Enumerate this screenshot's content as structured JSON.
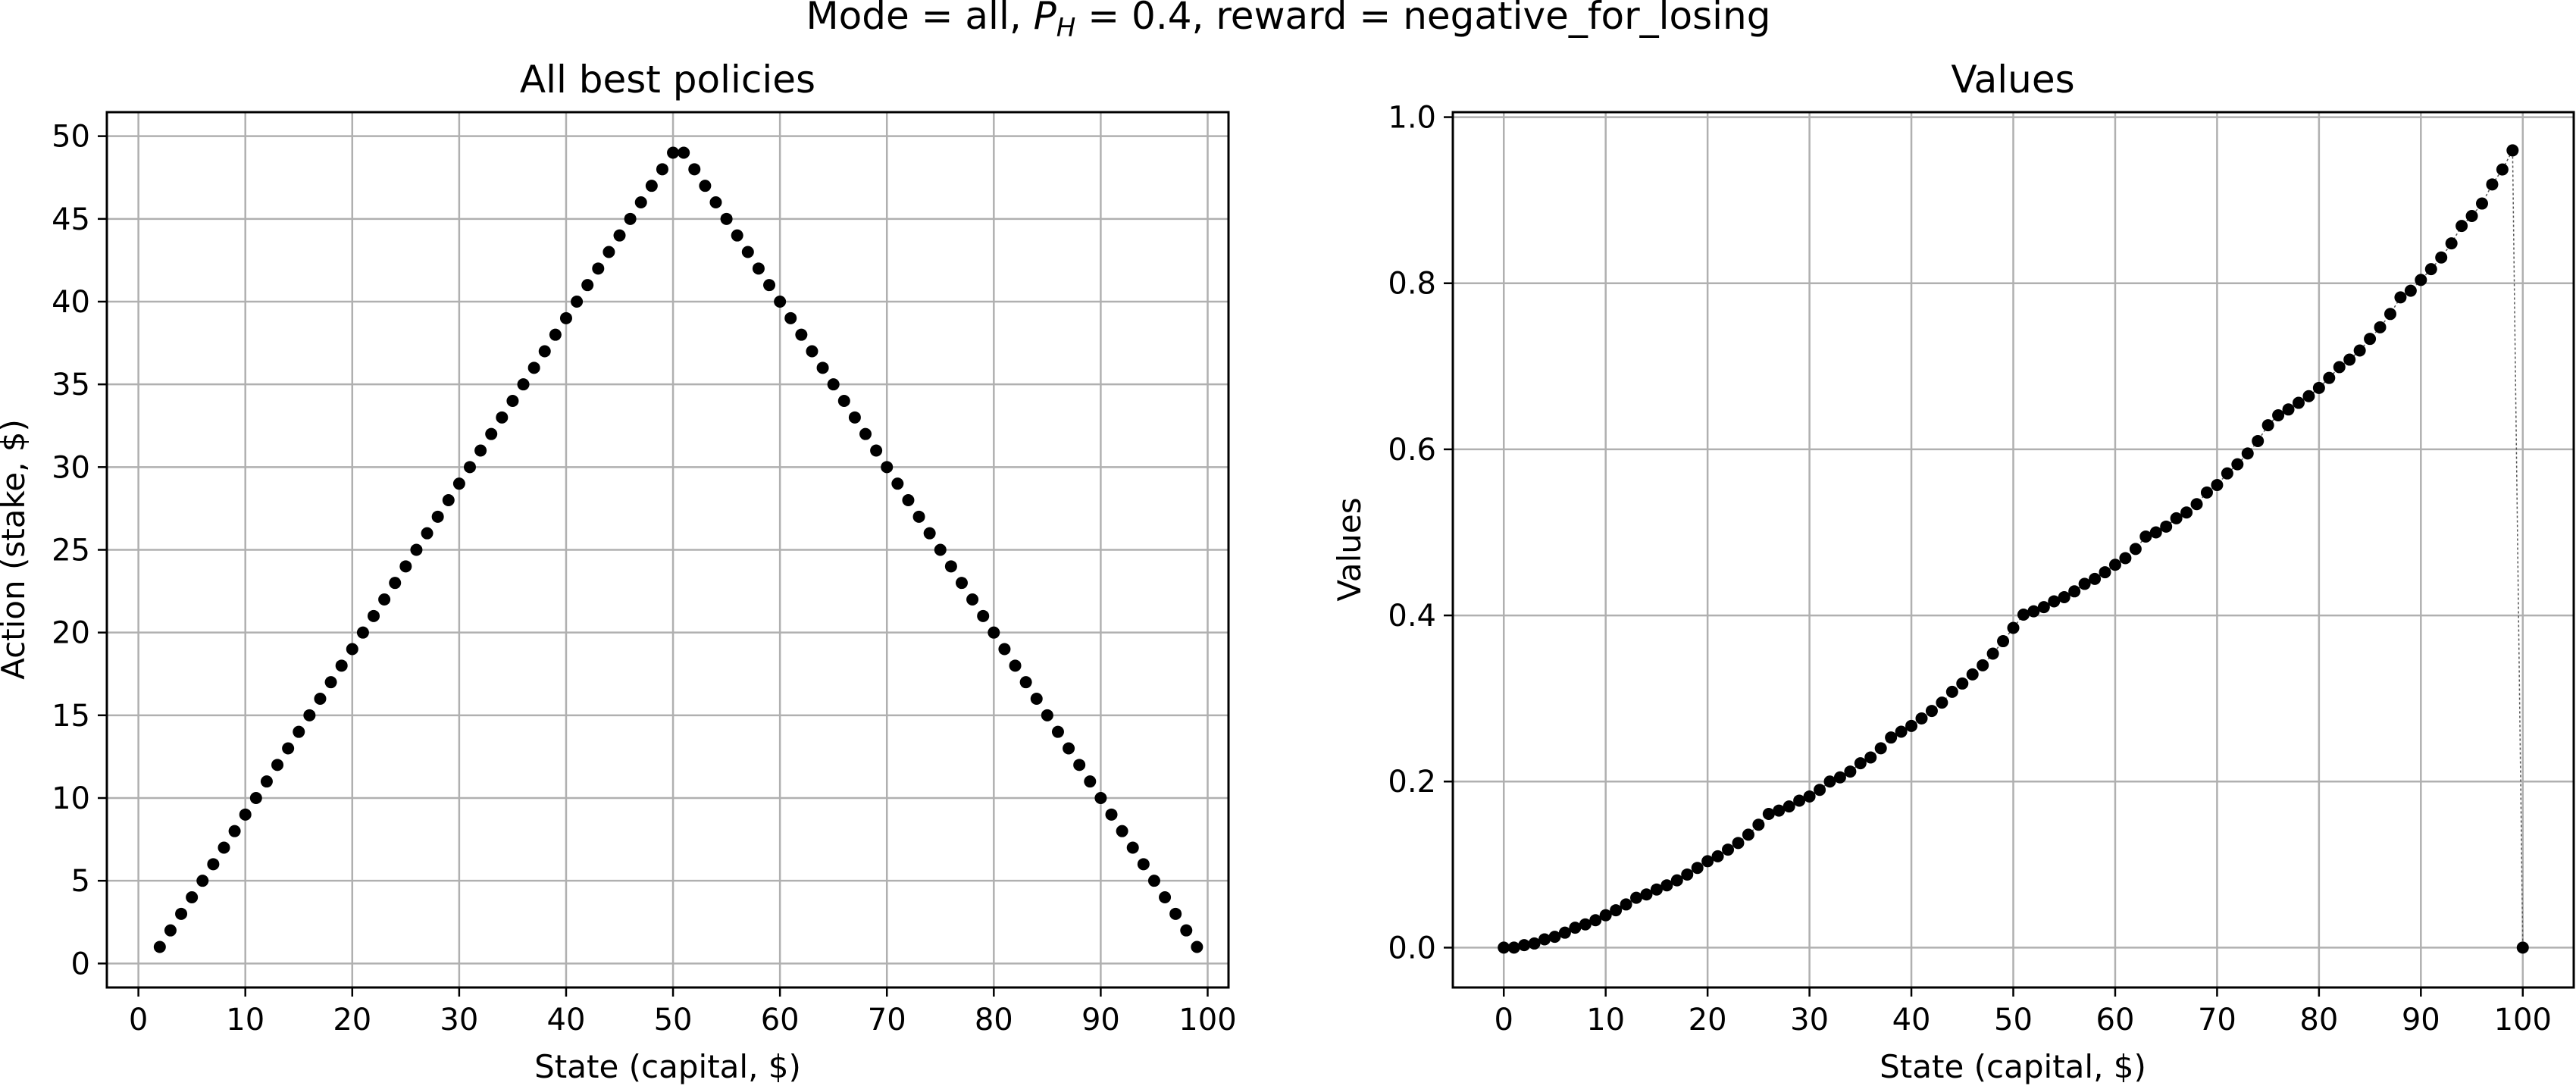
{
  "figure": {
    "suptitle_prefix": "Mode = all, ",
    "suptitle_symbol": "P",
    "suptitle_subscript": "H",
    "suptitle_suffix": " = 0.4, reward = negative_for_losing"
  },
  "colors": {
    "marker": "#000000",
    "grid": "#b0b0b0",
    "axis": "#000000",
    "background": "#ffffff"
  },
  "chart_data": [
    {
      "type": "scatter",
      "title": "All best policies",
      "xlabel": "State (capital, $)",
      "ylabel": "Action (stake, $)",
      "xlim": [
        -2.95,
        101.95
      ],
      "ylim": [
        -1.45,
        51.45
      ],
      "xticks": [
        0,
        10,
        20,
        30,
        40,
        50,
        60,
        70,
        80,
        90,
        100
      ],
      "yticks": [
        0,
        5,
        10,
        15,
        20,
        25,
        30,
        35,
        40,
        45,
        50
      ],
      "ytick_labels": [
        "0",
        "5",
        "10",
        "15",
        "20",
        "25",
        "30",
        "35",
        "40",
        "45",
        "50"
      ],
      "grid": true,
      "x": [
        2,
        3,
        4,
        5,
        6,
        7,
        8,
        9,
        10,
        11,
        12,
        13,
        14,
        15,
        16,
        17,
        18,
        19,
        20,
        21,
        22,
        23,
        24,
        25,
        26,
        27,
        28,
        29,
        30,
        31,
        32,
        33,
        34,
        35,
        36,
        37,
        38,
        39,
        40,
        41,
        42,
        43,
        44,
        45,
        46,
        47,
        48,
        49,
        50,
        51,
        52,
        53,
        54,
        55,
        56,
        57,
        58,
        59,
        60,
        61,
        62,
        63,
        64,
        65,
        66,
        67,
        68,
        69,
        70,
        71,
        72,
        73,
        74,
        75,
        76,
        77,
        78,
        79,
        80,
        81,
        82,
        83,
        84,
        85,
        86,
        87,
        88,
        89,
        90,
        91,
        92,
        93,
        94,
        95,
        96,
        97,
        98,
        99
      ],
      "y": [
        1,
        2,
        3,
        4,
        5,
        6,
        7,
        8,
        9,
        10,
        11,
        12,
        13,
        14,
        15,
        16,
        17,
        18,
        19,
        20,
        21,
        22,
        23,
        24,
        25,
        26,
        27,
        28,
        29,
        30,
        31,
        32,
        33,
        34,
        35,
        36,
        37,
        38,
        39,
        40,
        41,
        42,
        43,
        44,
        45,
        46,
        47,
        48,
        49,
        49,
        48,
        47,
        46,
        45,
        44,
        43,
        42,
        41,
        40,
        39,
        38,
        37,
        36,
        35,
        34,
        33,
        32,
        31,
        30,
        29,
        28,
        27,
        26,
        25,
        24,
        23,
        22,
        21,
        20,
        19,
        18,
        17,
        16,
        15,
        14,
        13,
        12,
        11,
        10,
        9,
        8,
        7,
        6,
        5,
        4,
        3,
        2,
        1
      ]
    },
    {
      "type": "line",
      "title": "Values",
      "xlabel": "State (capital, $)",
      "ylabel": "Values",
      "xlim": [
        -5,
        105
      ],
      "ylim": [
        -0.048,
        1.006
      ],
      "xticks": [
        0,
        10,
        20,
        30,
        40,
        50,
        60,
        70,
        80,
        90,
        100
      ],
      "yticks": [
        0.0,
        0.2,
        0.4,
        0.6,
        0.8,
        1.0
      ],
      "ytick_labels": [
        "0.0",
        "0.2",
        "0.4",
        "0.6",
        "0.8",
        "1.0"
      ],
      "grid": true,
      "markers": true,
      "line_style": "dotted-thin",
      "x": [
        0,
        1,
        2,
        3,
        4,
        5,
        6,
        7,
        8,
        9,
        10,
        11,
        12,
        13,
        14,
        15,
        16,
        17,
        18,
        19,
        20,
        21,
        22,
        23,
        24,
        25,
        26,
        27,
        28,
        29,
        30,
        31,
        32,
        33,
        34,
        35,
        36,
        37,
        38,
        39,
        40,
        41,
        42,
        43,
        44,
        45,
        46,
        47,
        48,
        49,
        50,
        51,
        52,
        53,
        54,
        55,
        56,
        57,
        58,
        59,
        60,
        61,
        62,
        63,
        64,
        65,
        66,
        67,
        68,
        69,
        70,
        71,
        72,
        73,
        74,
        75,
        76,
        77,
        78,
        79,
        80,
        81,
        82,
        83,
        84,
        85,
        86,
        87,
        88,
        89,
        90,
        91,
        92,
        93,
        94,
        95,
        96,
        97,
        98,
        99,
        100
      ],
      "y": [
        0.0,
        0.0,
        0.003,
        0.005,
        0.01,
        0.013,
        0.018,
        0.024,
        0.028,
        0.033,
        0.039,
        0.045,
        0.052,
        0.06,
        0.064,
        0.07,
        0.075,
        0.081,
        0.088,
        0.096,
        0.104,
        0.11,
        0.118,
        0.126,
        0.136,
        0.148,
        0.161,
        0.165,
        0.17,
        0.177,
        0.182,
        0.19,
        0.2,
        0.205,
        0.212,
        0.222,
        0.229,
        0.24,
        0.253,
        0.26,
        0.267,
        0.276,
        0.285,
        0.295,
        0.308,
        0.318,
        0.329,
        0.34,
        0.354,
        0.369,
        0.385,
        0.401,
        0.405,
        0.41,
        0.417,
        0.422,
        0.429,
        0.438,
        0.444,
        0.452,
        0.461,
        0.469,
        0.48,
        0.495,
        0.5,
        0.507,
        0.517,
        0.524,
        0.534,
        0.548,
        0.557,
        0.571,
        0.582,
        0.595,
        0.61,
        0.629,
        0.641,
        0.648,
        0.656,
        0.664,
        0.674,
        0.686,
        0.699,
        0.708,
        0.719,
        0.733,
        0.747,
        0.763,
        0.783,
        0.791,
        0.804,
        0.817,
        0.831,
        0.848,
        0.869,
        0.881,
        0.896,
        0.919,
        0.937,
        0.96,
        0.0
      ]
    }
  ],
  "layout": {
    "panels": [
      {
        "frame": [
          141,
          148,
          1621,
          1303
        ]
      },
      {
        "frame": [
          1917,
          148,
          3396,
          1303
        ]
      }
    ]
  }
}
